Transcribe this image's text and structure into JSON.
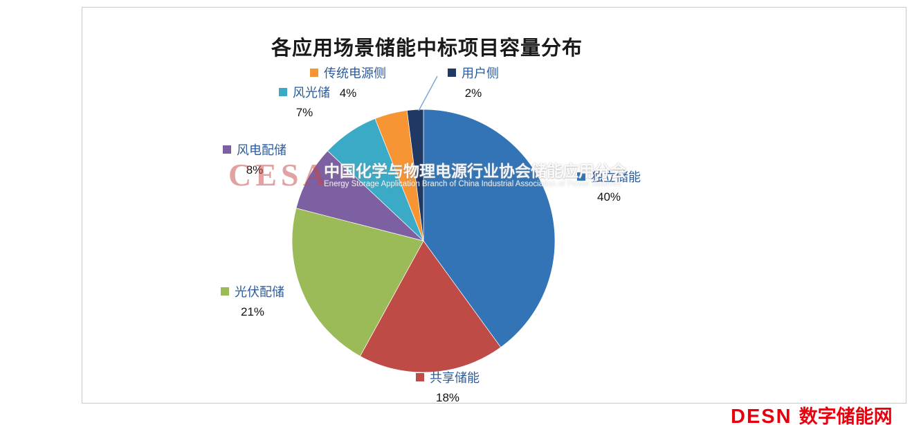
{
  "chart_data": {
    "type": "pie",
    "title": "各应用场景储能中标项目容量分布",
    "unit": "%",
    "start_angle": "12 o'clock, clockwise",
    "legend_position": "data labels around pie, leader line on 用户侧",
    "series": [
      {
        "id": "independent-storage",
        "label": "独立储能",
        "value": 40,
        "pct": "40%",
        "color": "#3374B6"
      },
      {
        "id": "shared-storage",
        "label": "共享储能",
        "value": 18,
        "pct": "18%",
        "color": "#BF4B47"
      },
      {
        "id": "pv-plus-storage",
        "label": "光伏配储",
        "value": 21,
        "pct": "21%",
        "color": "#9BBB59"
      },
      {
        "id": "wind-plus-storage",
        "label": "风电配储",
        "value": 8,
        "pct": "8%",
        "color": "#7D60A2"
      },
      {
        "id": "wind-solar-storage",
        "label": "风光储",
        "value": 7,
        "pct": "7%",
        "color": "#3BAAC6"
      },
      {
        "id": "traditional-gen-side",
        "label": "传统电源侧",
        "value": 4,
        "pct": "4%",
        "color": "#F79434"
      },
      {
        "id": "user-side",
        "label": "用户侧",
        "value": 2,
        "pct": "2%",
        "color": "#203864"
      }
    ]
  },
  "watermark": {
    "logo": "CESA",
    "org_name": "中国化学与物理电源行业协会储能应用分会",
    "org_name_en": "Energy Storage Application Branch of China Industrial Association of Power Sources"
  },
  "site_logo": {
    "brand": "DESN",
    "site_name": "数字储能网",
    "color": "#E8000D"
  }
}
